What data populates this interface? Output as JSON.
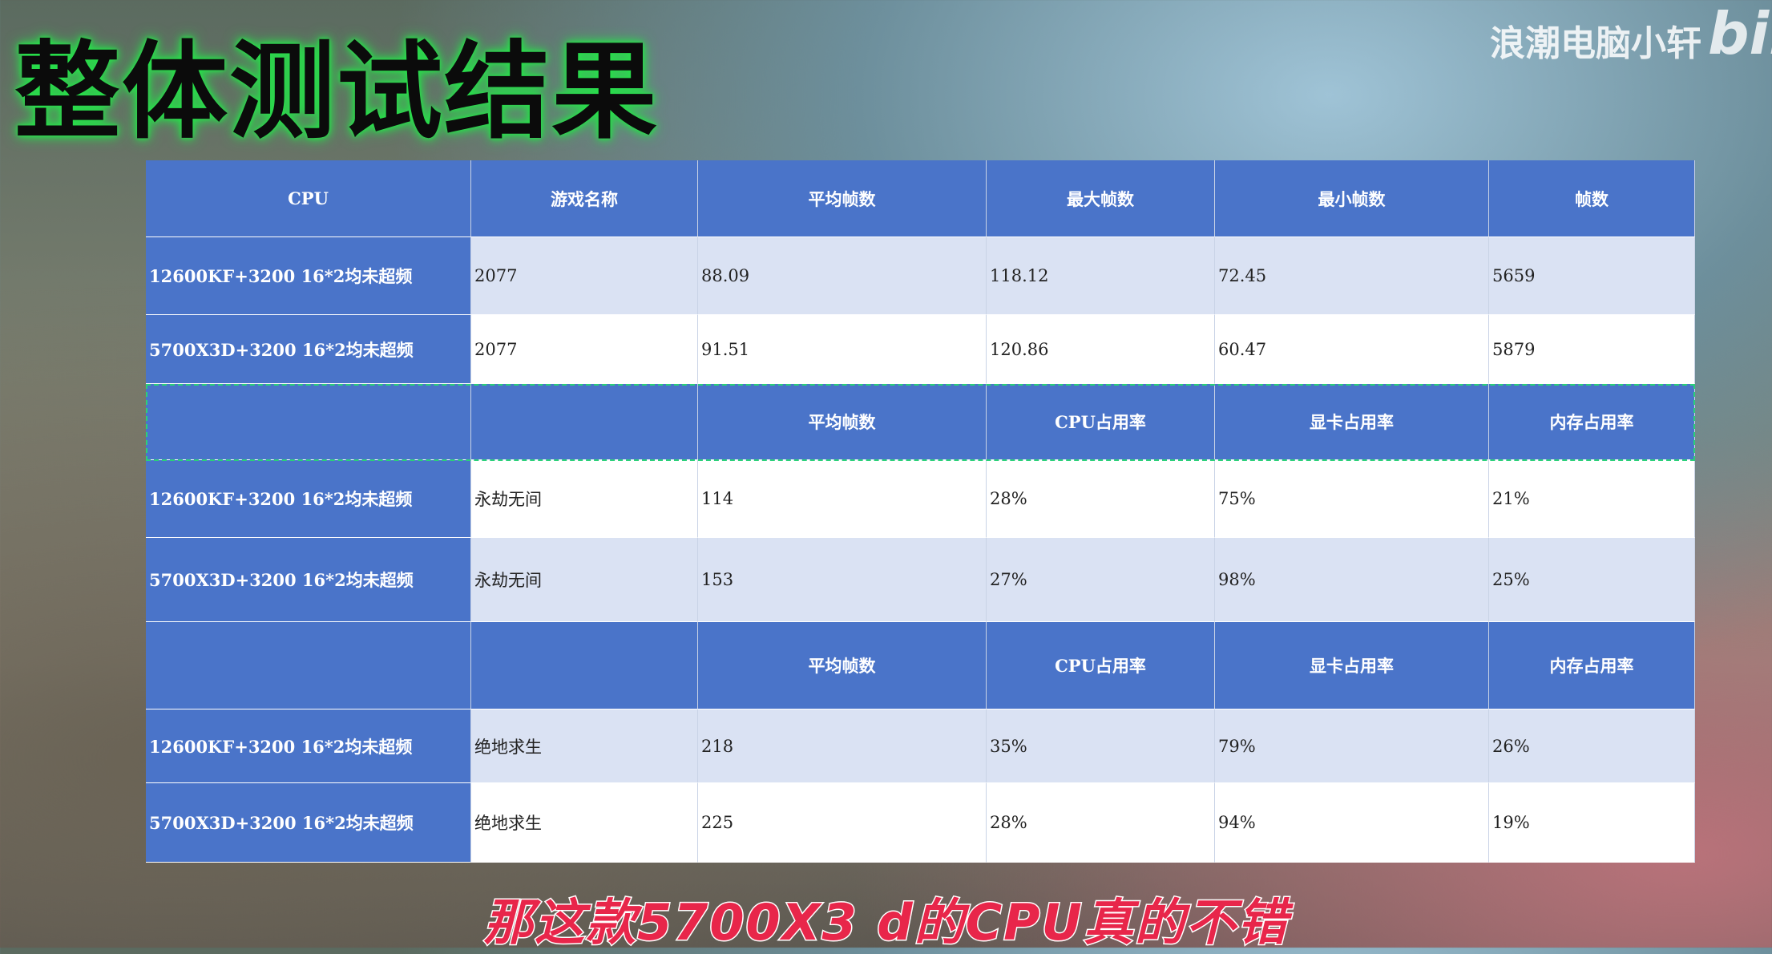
{
  "title": "整体测试结果",
  "watermark": {
    "channel": "浪潮电脑小轩",
    "logo": "bili"
  },
  "table": {
    "sections": [
      {
        "header": [
          "CPU",
          "游戏名称",
          "平均帧数",
          "最大帧数",
          "最小帧数",
          "帧数"
        ],
        "rows": [
          [
            "12600KF+3200 16*2均未超频",
            "2077",
            "88.09",
            "118.12",
            "72.45",
            "5659"
          ],
          [
            "5700X3D+3200 16*2均未超频",
            "2077",
            "91.51",
            "120.86",
            "60.47",
            "5879"
          ]
        ]
      },
      {
        "header": [
          "平均帧数",
          "CPU占用率",
          "显卡占用率",
          "内存占用率"
        ],
        "rows": [
          [
            "12600KF+3200 16*2均未超频",
            "永劫无间",
            "114",
            "28%",
            "75%",
            "21%"
          ],
          [
            "5700X3D+3200 16*2均未超频",
            "永劫无间",
            "153",
            "27%",
            "98%",
            "25%"
          ]
        ]
      },
      {
        "header": [
          "平均帧数",
          "CPU占用率",
          "显卡占用率",
          "内存占用率"
        ],
        "rows": [
          [
            "12600KF+3200 16*2均未超频",
            "绝地求生",
            "218",
            "35%",
            "79%",
            "26%"
          ],
          [
            "5700X3D+3200 16*2均未超频",
            "绝地求生",
            "225",
            "28%",
            "94%",
            "19%"
          ]
        ]
      }
    ]
  },
  "subtitle": "那这款5700X3 d的CPU真的不错"
}
